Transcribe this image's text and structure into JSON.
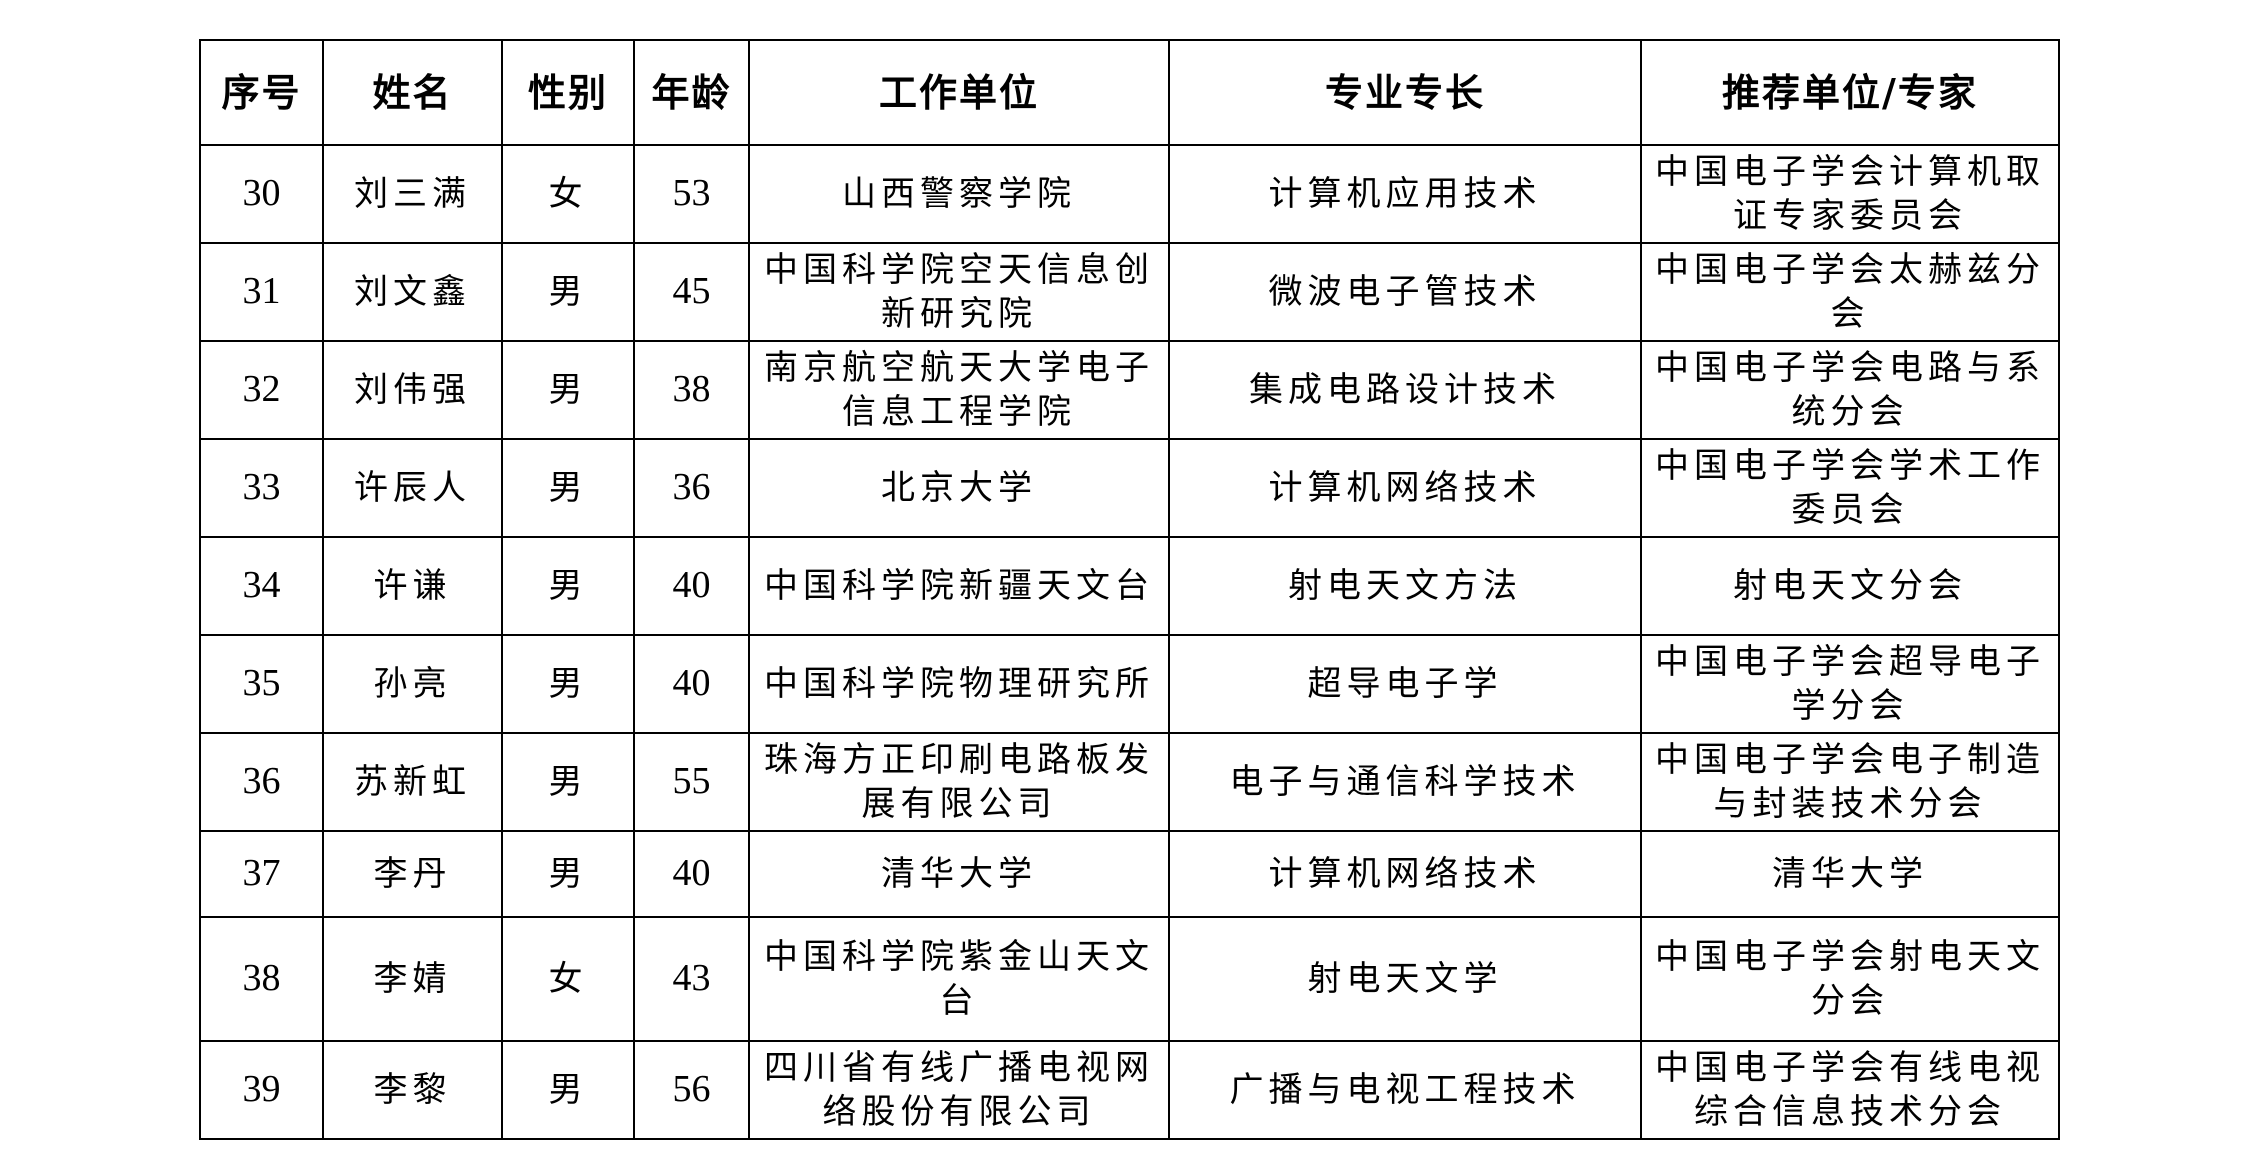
{
  "table": {
    "headers": [
      "序号",
      "姓名",
      "性别",
      "年龄",
      "工作单位",
      "专业专长",
      "推荐单位/专家"
    ],
    "rows": [
      [
        "30",
        "刘三满",
        "女",
        "53",
        "山西警察学院",
        "计算机应用技术",
        "中国电子学会计算机取证专家委员会"
      ],
      [
        "31",
        "刘文鑫",
        "男",
        "45",
        "中国科学院空天信息创新研究院",
        "微波电子管技术",
        "中国电子学会太赫兹分会"
      ],
      [
        "32",
        "刘伟强",
        "男",
        "38",
        "南京航空航天大学电子信息工程学院",
        "集成电路设计技术",
        "中国电子学会电路与系统分会"
      ],
      [
        "33",
        "许辰人",
        "男",
        "36",
        "北京大学",
        "计算机网络技术",
        "中国电子学会学术工作委员会"
      ],
      [
        "34",
        "许谦",
        "男",
        "40",
        "中国科学院新疆天文台",
        "射电天文方法",
        "射电天文分会"
      ],
      [
        "35",
        "孙亮",
        "男",
        "40",
        "中国科学院物理研究所",
        "超导电子学",
        "中国电子学会超导电子学分会"
      ],
      [
        "36",
        "苏新虹",
        "男",
        "55",
        "珠海方正印刷电路板发展有限公司",
        "电子与通信科学技术",
        "中国电子学会电子制造与封装技术分会"
      ],
      [
        "37",
        "李丹",
        "男",
        "40",
        "清华大学",
        "计算机网络技术",
        "清华大学"
      ],
      [
        "38",
        "李婧",
        "女",
        "43",
        "中国科学院紫金山天文台",
        "射电天文学",
        "中国电子学会射电天文分会"
      ],
      [
        "39",
        "李黎",
        "男",
        "56",
        "四川省有线广播电视网络股份有限公司",
        "广播与电视工程技术",
        "中国电子学会有线电视综合信息技术分会"
      ]
    ]
  }
}
